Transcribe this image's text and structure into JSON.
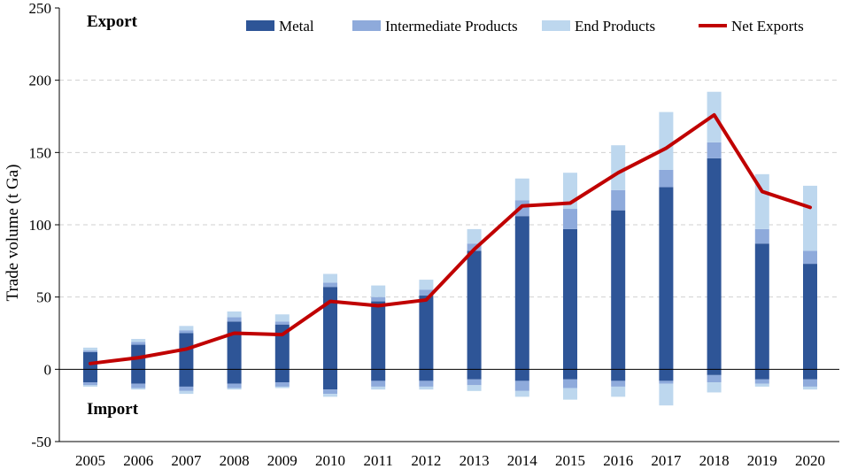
{
  "chart_data": {
    "type": "bar",
    "stacked": true,
    "title": "",
    "xlabel": "",
    "ylabel": "Trade volume (t Ga)",
    "ylim": [
      -50,
      250
    ],
    "yticks": [
      -50,
      0,
      50,
      100,
      150,
      200,
      250
    ],
    "grid": "horizontal dashed",
    "legend_position": "top",
    "annotations": {
      "top": "Export",
      "bottom": "Import"
    },
    "categories": [
      "2005",
      "2006",
      "2007",
      "2008",
      "2009",
      "2010",
      "2011",
      "2012",
      "2013",
      "2014",
      "2015",
      "2016",
      "2017",
      "2018",
      "2019",
      "2020"
    ],
    "export_series": [
      {
        "name": "Metal",
        "color": "#2e5597",
        "values": [
          12,
          17,
          25,
          33,
          31,
          57,
          47,
          51,
          82,
          106,
          97,
          110,
          126,
          146,
          87,
          73
        ]
      },
      {
        "name": "Intermediate Products",
        "color": "#8eaadb",
        "values": [
          1,
          2,
          2,
          3,
          2,
          3,
          3,
          4,
          5,
          11,
          14,
          14,
          12,
          11,
          10,
          9
        ]
      },
      {
        "name": "End Products",
        "color": "#bdd7ee",
        "values": [
          2,
          2,
          3,
          4,
          5,
          6,
          8,
          7,
          10,
          15,
          25,
          31,
          40,
          35,
          38,
          45
        ]
      }
    ],
    "import_series": [
      {
        "name": "Metal",
        "color": "#2e5597",
        "values": [
          -9,
          -10,
          -12,
          -10,
          -9,
          -14,
          -8,
          -8,
          -7,
          -8,
          -7,
          -8,
          -8,
          -4,
          -7,
          -7
        ]
      },
      {
        "name": "Intermediate Products",
        "color": "#8eaadb",
        "values": [
          -2,
          -3,
          -3,
          -3,
          -3,
          -3,
          -4,
          -4,
          -4,
          -7,
          -6,
          -4,
          -2,
          -5,
          -3,
          -5
        ]
      },
      {
        "name": "End Products",
        "color": "#bdd7ee",
        "values": [
          -1,
          -1,
          -2,
          -1,
          -1,
          -2,
          -2,
          -2,
          -4,
          -4,
          -8,
          -7,
          -15,
          -7,
          -2,
          -2
        ]
      }
    ],
    "line_series": {
      "name": "Net Exports",
      "color": "#c00000",
      "values": [
        4,
        8,
        14,
        25,
        24,
        47,
        44,
        48,
        83,
        113,
        115,
        136,
        153,
        176,
        123,
        112
      ]
    }
  }
}
